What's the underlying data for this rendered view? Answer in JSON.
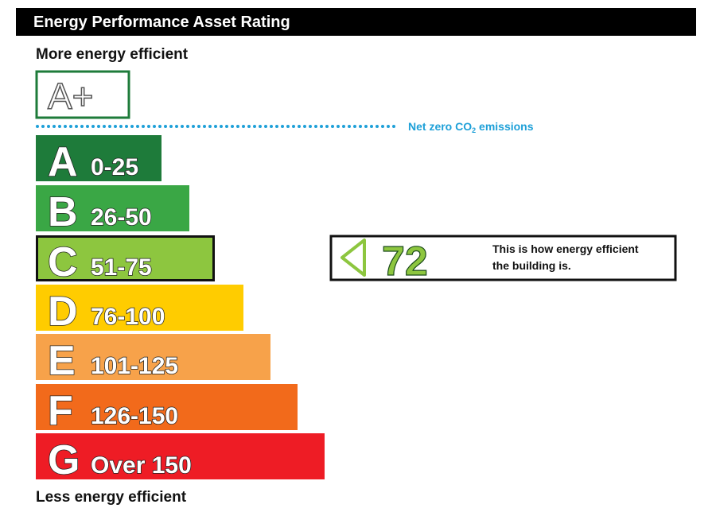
{
  "header": {
    "title": "Energy Performance Asset Rating"
  },
  "top_label": "More energy efficient",
  "top_rating": {
    "label": "A+",
    "color": "#1e7b3a"
  },
  "net_zero": {
    "prefix": "Net zero CO",
    "subscript": "2",
    "suffix": " emissions",
    "color": "#1ea0d8"
  },
  "bands": [
    {
      "letter": "A",
      "range": "0-25",
      "color": "#1e7b3a"
    },
    {
      "letter": "B",
      "range": "26-50",
      "color": "#3aa745"
    },
    {
      "letter": "C",
      "range": "51-75",
      "color": "#8dc63f"
    },
    {
      "letter": "D",
      "range": "76-100",
      "color": "#ffcc00"
    },
    {
      "letter": "E",
      "range": "101-125",
      "color": "#f7a24a"
    },
    {
      "letter": "F",
      "range": "126-150",
      "color": "#f26a1b"
    },
    {
      "letter": "G",
      "range": "Over 150",
      "color": "#ee1c25"
    }
  ],
  "rating": {
    "value": 72,
    "text_line1": "This is how energy efficient",
    "text_line2": "the building is."
  },
  "bottom_label": "Less energy efficient"
}
